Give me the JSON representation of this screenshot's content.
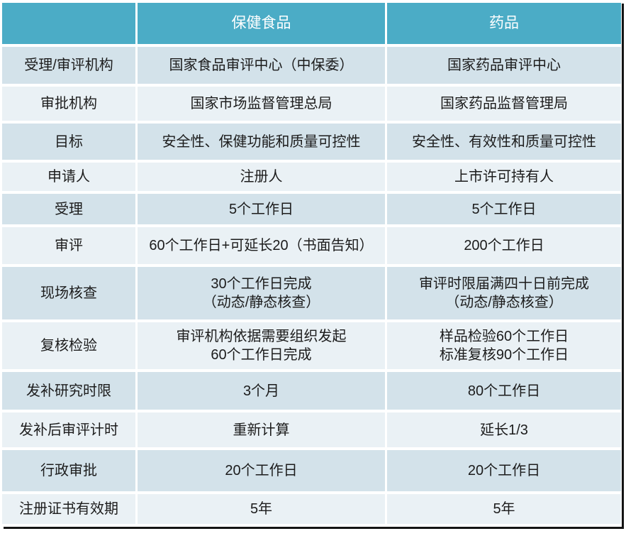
{
  "colors": {
    "header_bg": "#4BACC6",
    "header_text": "#FFFFFF",
    "band_dark": "#D3E2EA",
    "band_light": "#EAF1F5",
    "body_text": "#1C1C1C",
    "frame_line": "#141414",
    "gap": "#FFFFFF"
  },
  "table": {
    "header": {
      "col1": "",
      "col2": "保健食品",
      "col3": "药品"
    },
    "rows": [
      {
        "label": "受理/审评机构",
        "health_food": "国家食品审评中心（中保委）",
        "drug": "国家药品审评中心"
      },
      {
        "label": "审批机构",
        "health_food": "国家市场监督管理总局",
        "drug": "国家药品监督管理局"
      },
      {
        "label": "目标",
        "health_food": "安全性、保健功能和质量可控性",
        "drug": "安全性、有效性和质量可控性"
      },
      {
        "label": "申请人",
        "health_food": "注册人",
        "drug": "上市许可持有人"
      },
      {
        "label": "受理",
        "health_food": "5个工作日",
        "drug": "5个工作日"
      },
      {
        "label": "审评",
        "health_food": "60个工作日+可延长20（书面告知）",
        "drug": "200个工作日"
      },
      {
        "label": "现场核查",
        "health_food": "30个工作日完成\n（动态/静态核查）",
        "drug": "审评时限届满四十日前完成\n（动态/静态核查）"
      },
      {
        "label": "复核检验",
        "health_food": "审评机构依据需要组织发起\n60个工作日完成",
        "drug": "样品检验60个工作日\n标准复核90个工作日"
      },
      {
        "label": "发补研究时限",
        "health_food": "3个月",
        "drug": "80个工作日"
      },
      {
        "label": "发补后审评计时",
        "health_food": "重新计算",
        "drug": "延长1/3"
      },
      {
        "label": "行政审批",
        "health_food": "20个工作日",
        "drug": "20个工作日"
      },
      {
        "label": "注册证书有效期",
        "health_food": "5年",
        "drug": "5年"
      }
    ]
  }
}
